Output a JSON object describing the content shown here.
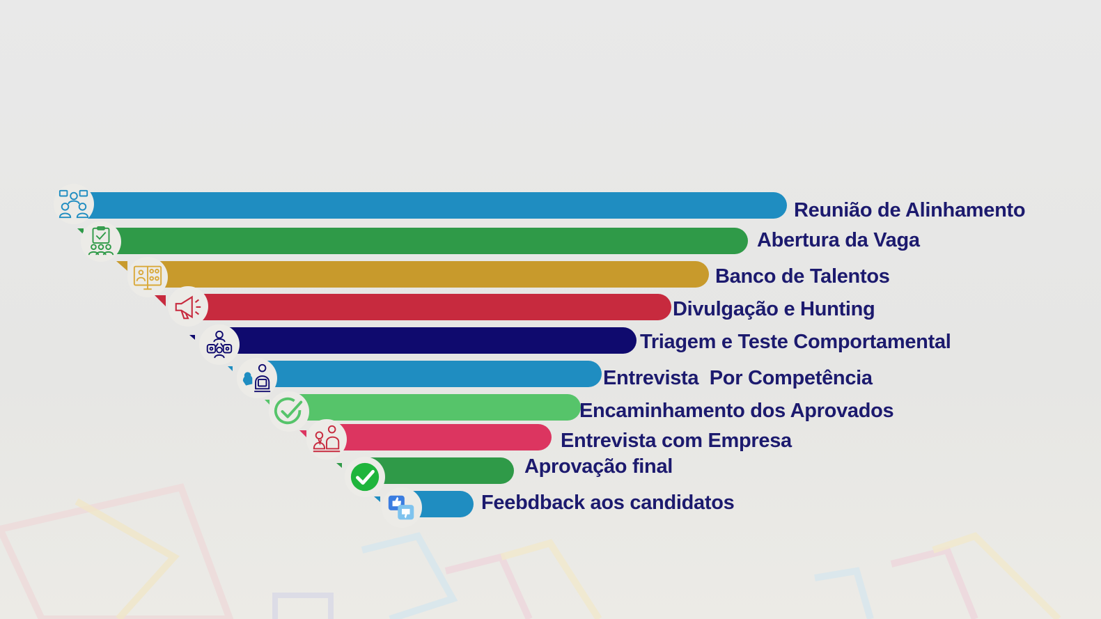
{
  "steps": [
    {
      "label": "Reunião de Alinhamento",
      "color": "#1f8dc1",
      "icon": "meeting-people-icon"
    },
    {
      "label": "Abertura da Vaga",
      "color": "#2f9a48",
      "icon": "clipboard-team-icon"
    },
    {
      "label": "Banco de Talentos",
      "color": "#c89a2c",
      "icon": "talent-database-icon"
    },
    {
      "label": "Divulgação e Hunting",
      "color": "#c72a3e",
      "icon": "megaphone-icon"
    },
    {
      "label": "Triagem e Teste Comportamental",
      "color": "#0f0a6e",
      "icon": "team-network-icon"
    },
    {
      "label": "Entrevista  Por Competência",
      "color": "#1f8dc1",
      "icon": "interview-icon"
    },
    {
      "label": "Encaminhamento dos Aprovados",
      "color": "#56c46a",
      "icon": "check-circle-outline-icon"
    },
    {
      "label": "Entrevista com Empresa",
      "color": "#dc3560",
      "icon": "company-interview-icon"
    },
    {
      "label": "Aprovação final",
      "color": "#2f9a48",
      "icon": "check-circle-filled-icon"
    },
    {
      "label": "Feebdback aos candidatos",
      "color": "#1f8dc1",
      "icon": "feedback-thumbs-icon"
    }
  ]
}
